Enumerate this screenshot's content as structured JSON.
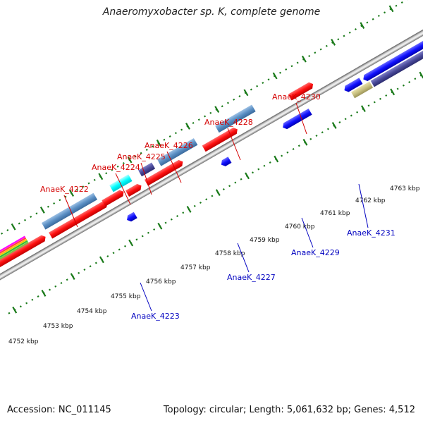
{
  "title": "Anaeromyxobacter sp. K, complete genome",
  "footer": {
    "accession": "Accession: NC_011145",
    "topology": "Topology: circular; Length: 5,061,632 bp; Genes: 4,512"
  },
  "colors": {
    "forward_label": "#d40000",
    "reverse_label": "#0000c0",
    "scale_dots": "#1a7a1a",
    "backbone": "#9a9a9a",
    "cds_red": "#ff1a1a",
    "cds_blue": "#1a1aff",
    "cds_steelblue": "#5b8fc4",
    "cds_cyan": "#00ffff",
    "cds_slate": "#4a4a9a",
    "cds_khaki": "#c8c080"
  },
  "scale_ticks": [
    {
      "label": "4752 kbp"
    },
    {
      "label": "4753 kbp"
    },
    {
      "label": "4754 kbp"
    },
    {
      "label": "4755 kbp"
    },
    {
      "label": "4756 kbp"
    },
    {
      "label": "4757 kbp"
    },
    {
      "label": "4758 kbp"
    },
    {
      "label": "4759 kbp"
    },
    {
      "label": "4760 kbp"
    },
    {
      "label": "4761 kbp"
    },
    {
      "label": "4762 kbp"
    },
    {
      "label": "4763 kbp"
    }
  ],
  "gene_labels": [
    {
      "label": "AnaeK_4222",
      "strand": "forward"
    },
    {
      "label": "AnaeK_4224",
      "strand": "forward"
    },
    {
      "label": "AnaeK_4225",
      "strand": "forward"
    },
    {
      "label": "AnaeK_4226",
      "strand": "forward"
    },
    {
      "label": "AnaeK_4228",
      "strand": "forward"
    },
    {
      "label": "AnaeK_4230",
      "strand": "forward"
    },
    {
      "label": "AnaeK_4223",
      "strand": "reverse"
    },
    {
      "label": "AnaeK_4227",
      "strand": "reverse"
    },
    {
      "label": "AnaeK_4229",
      "strand": "reverse"
    },
    {
      "label": "AnaeK_4231",
      "strand": "reverse"
    }
  ]
}
